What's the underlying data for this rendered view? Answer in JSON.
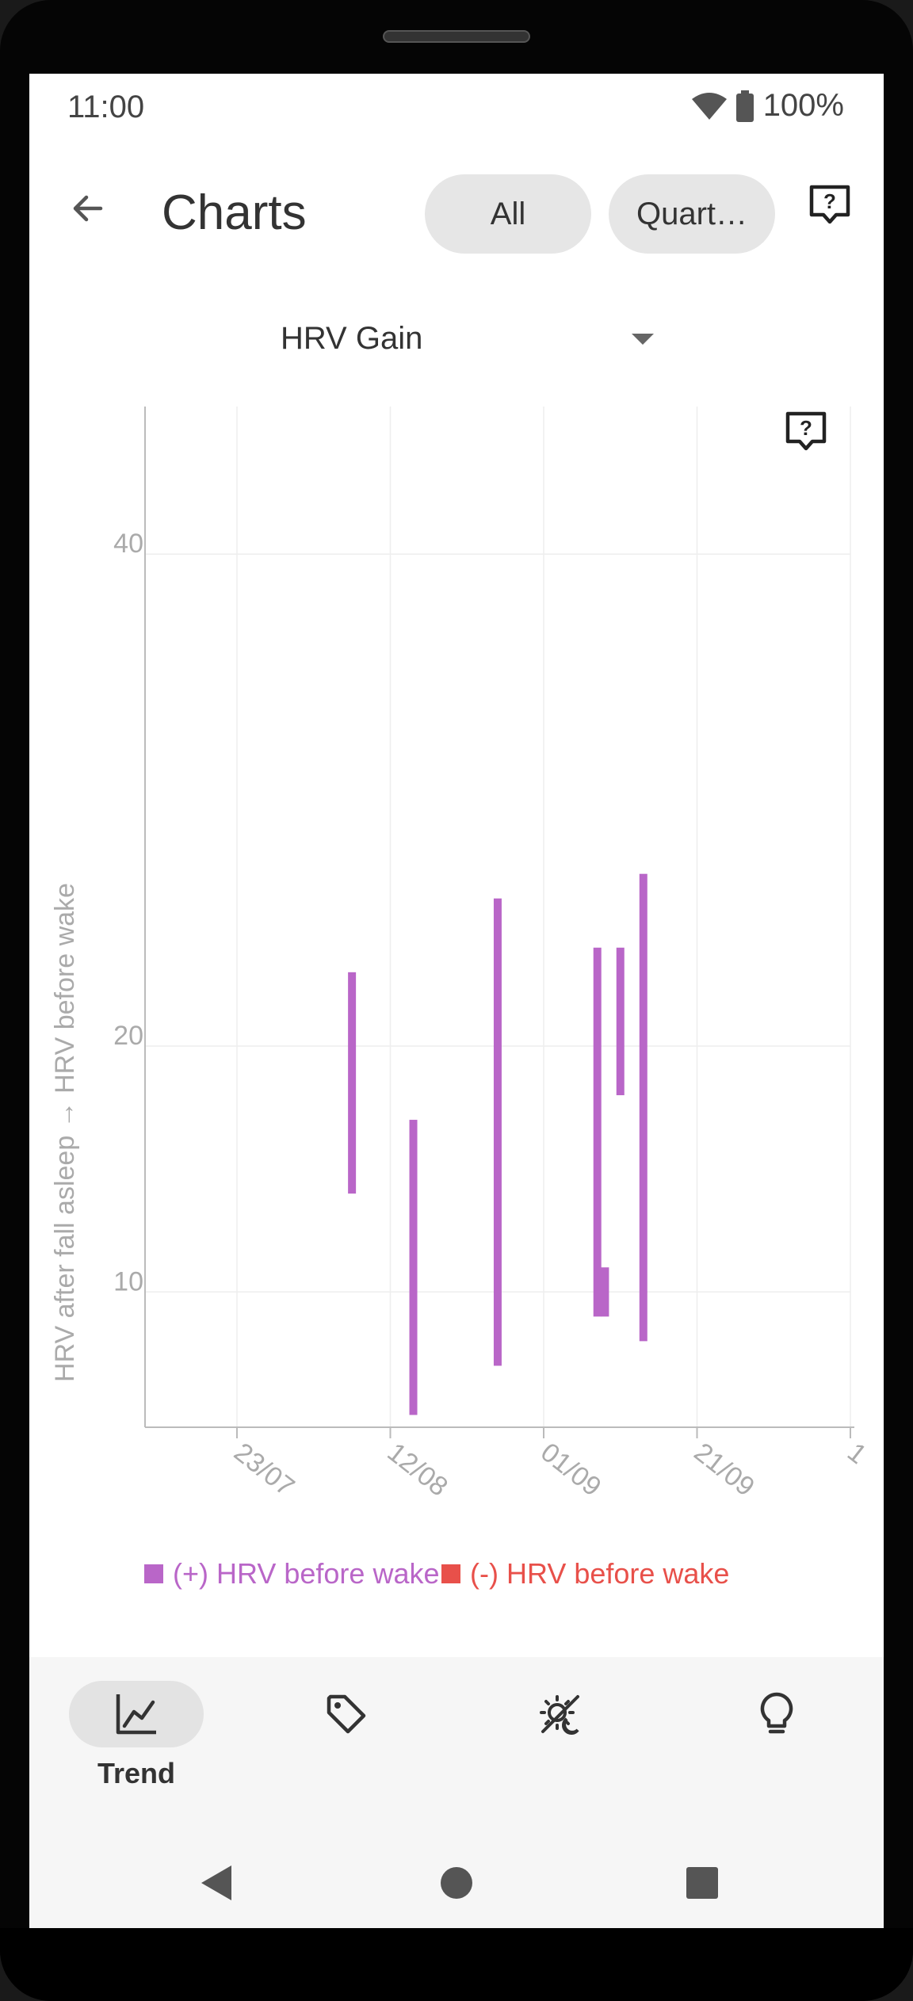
{
  "status_bar": {
    "time": "11:00",
    "battery": "100%"
  },
  "appbar": {
    "title": "Charts",
    "filter_all": "All",
    "filter_period": "Quart…"
  },
  "metric_selector": {
    "value": "HRV Gain"
  },
  "chart_data": {
    "type": "bar",
    "subtype": "floating-range",
    "ylabel": "HRV after fall asleep → HRV before wake",
    "xlabel": "",
    "ylim": [
      4.5,
      46
    ],
    "yticks": [
      "10",
      "20",
      "40"
    ],
    "xticks": [
      "23/07",
      "12/08",
      "01/09",
      "21/09",
      "1"
    ],
    "grid": true,
    "legend_position": "bottom",
    "series": [
      {
        "name": "(+) HRV before wake",
        "color": "#B966C8",
        "ranges": [
          {
            "x": "2023-08-07",
            "low": 14,
            "high": 23
          },
          {
            "x": "2023-08-15",
            "low": 5,
            "high": 17
          },
          {
            "x": "2023-08-26",
            "low": 7,
            "high": 26
          },
          {
            "x": "2023-09-08",
            "low": 9,
            "high": 24
          },
          {
            "x": "2023-09-09",
            "low": 9,
            "high": 11
          },
          {
            "x": "2023-09-11",
            "low": 18,
            "high": 24
          },
          {
            "x": "2023-09-14",
            "low": 8,
            "high": 27
          }
        ]
      },
      {
        "name": "(-) HRV before wake",
        "color": "#E8504A",
        "ranges": []
      }
    ]
  },
  "nav": {
    "trend_label": "Trend"
  },
  "colors": {
    "accent_purple": "#B966C8",
    "accent_red": "#E8504A"
  }
}
